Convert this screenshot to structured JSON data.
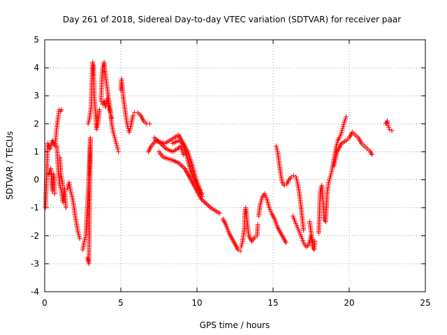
{
  "chart_data": {
    "type": "scatter",
    "title": "Day 261 of 2018, Sidereal Day-to-day VTEC variation (SDTVAR) for receiver paar",
    "xlabel": "GPS time / hours",
    "ylabel": "SDTVAR / TECUs",
    "xlim": [
      0,
      25
    ],
    "ylim": [
      -4,
      5
    ],
    "xticks": [
      "0",
      "5",
      "10",
      "15",
      "20",
      "25"
    ],
    "yticks": [
      "-4",
      "-3",
      "-2",
      "-1",
      "0",
      "1",
      "2",
      "3",
      "4",
      "5"
    ],
    "grid": true,
    "marker": "+",
    "color": "#ff0000",
    "segments": [
      [
        [
          0.05,
          -1.0
        ],
        [
          0.15,
          0.5
        ],
        [
          0.2,
          1.3
        ],
        [
          0.35,
          1.1
        ],
        [
          0.5,
          1.4
        ],
        [
          0.7,
          1.2
        ]
      ],
      [
        [
          0.25,
          0.2
        ],
        [
          0.4,
          0.4
        ],
        [
          0.5,
          -0.4
        ],
        [
          0.6,
          0.2
        ],
        [
          0.65,
          -0.5
        ]
      ],
      [
        [
          0.7,
          1.3
        ],
        [
          0.8,
          1.9
        ],
        [
          0.9,
          2.3
        ],
        [
          0.95,
          2.5
        ],
        [
          1.05,
          2.45
        ],
        [
          1.1,
          2.5
        ]
      ],
      [
        [
          0.8,
          1.2
        ],
        [
          0.9,
          0.3
        ],
        [
          1.0,
          -0.2
        ],
        [
          1.1,
          -0.4
        ],
        [
          1.2,
          -0.8
        ],
        [
          1.3,
          -0.3
        ],
        [
          1.4,
          -1.0
        ]
      ],
      [
        [
          1.0,
          0.8
        ],
        [
          1.05,
          0.3
        ],
        [
          1.1,
          0.1
        ],
        [
          1.2,
          -0.2
        ]
      ],
      [
        [
          1.5,
          -0.3
        ],
        [
          1.6,
          -0.1
        ],
        [
          1.7,
          -0.4
        ],
        [
          1.8,
          -0.6
        ],
        [
          1.9,
          -0.9
        ],
        [
          2.0,
          -1.3
        ],
        [
          2.1,
          -1.6
        ],
        [
          2.2,
          -1.9
        ],
        [
          2.3,
          -2.1
        ]
      ],
      [
        [
          2.5,
          -2.5
        ],
        [
          2.6,
          -2.2
        ],
        [
          2.7,
          -2.0
        ],
        [
          2.75,
          -1.5
        ],
        [
          2.8,
          -1.0
        ],
        [
          2.85,
          -0.5
        ],
        [
          2.9,
          0.2
        ],
        [
          2.95,
          0.7
        ],
        [
          3.0,
          1.5
        ],
        [
          2.9,
          -3.0
        ],
        [
          2.8,
          -2.8
        ]
      ],
      [
        [
          2.85,
          2.0
        ],
        [
          2.95,
          2.2
        ],
        [
          3.05,
          2.6
        ],
        [
          3.1,
          3.5
        ],
        [
          3.15,
          4.2
        ],
        [
          3.2,
          4.1
        ],
        [
          3.25,
          3.0
        ],
        [
          3.35,
          2.3
        ],
        [
          3.4,
          1.8
        ],
        [
          3.5,
          2.0
        ],
        [
          3.6,
          2.5
        ]
      ],
      [
        [
          3.7,
          2.8
        ],
        [
          3.75,
          3.5
        ],
        [
          3.8,
          4.0
        ],
        [
          3.9,
          4.2
        ],
        [
          4.0,
          3.7
        ],
        [
          4.1,
          3.3
        ],
        [
          4.2,
          2.9
        ],
        [
          4.3,
          2.5
        ],
        [
          4.4,
          2.0
        ],
        [
          4.5,
          1.7
        ],
        [
          4.6,
          1.5
        ],
        [
          4.7,
          1.3
        ],
        [
          4.8,
          1.1
        ],
        [
          4.85,
          1.0
        ]
      ],
      [
        [
          3.8,
          2.7
        ],
        [
          3.9,
          2.8
        ],
        [
          4.0,
          2.6
        ],
        [
          4.1,
          2.9
        ],
        [
          4.2,
          2.6
        ],
        [
          4.3,
          2.4
        ],
        [
          4.4,
          2.2
        ]
      ],
      [
        [
          5.0,
          3.2
        ],
        [
          5.05,
          3.6
        ],
        [
          5.15,
          3.0
        ],
        [
          5.25,
          2.6
        ],
        [
          5.35,
          2.2
        ],
        [
          5.45,
          1.9
        ],
        [
          5.55,
          1.7
        ],
        [
          5.65,
          1.9
        ],
        [
          5.8,
          2.3
        ]
      ],
      [
        [
          5.9,
          2.4
        ],
        [
          6.1,
          2.4
        ],
        [
          6.3,
          2.3
        ],
        [
          6.5,
          2.1
        ],
        [
          6.7,
          2.0
        ],
        [
          6.9,
          2.0
        ]
      ],
      [
        [
          6.8,
          1.0
        ],
        [
          7.0,
          1.2
        ],
        [
          7.3,
          1.4
        ],
        [
          7.6,
          1.35
        ],
        [
          7.9,
          1.3
        ],
        [
          8.2,
          1.4
        ],
        [
          8.5,
          1.5
        ],
        [
          8.8,
          1.6
        ],
        [
          9.0,
          1.4
        ],
        [
          9.2,
          1.1
        ],
        [
          9.4,
          0.7
        ],
        [
          9.6,
          0.3
        ],
        [
          9.8,
          0.0
        ],
        [
          10.0,
          -0.2
        ],
        [
          10.2,
          -0.4
        ],
        [
          10.35,
          -0.6
        ]
      ],
      [
        [
          7.2,
          1.5
        ],
        [
          7.6,
          1.3
        ],
        [
          8.0,
          1.1
        ],
        [
          8.4,
          1.0
        ],
        [
          8.7,
          1.1
        ],
        [
          8.95,
          1.2
        ],
        [
          9.1,
          0.9
        ]
      ],
      [
        [
          7.5,
          1.0
        ],
        [
          7.8,
          0.8
        ],
        [
          8.1,
          0.75
        ],
        [
          8.4,
          0.7
        ],
        [
          8.8,
          0.6
        ],
        [
          9.2,
          0.4
        ],
        [
          9.6,
          0.0
        ],
        [
          10.0,
          -0.4
        ],
        [
          10.3,
          -0.7
        ],
        [
          10.6,
          -0.85
        ],
        [
          10.9,
          -1.0
        ],
        [
          11.2,
          -1.1
        ],
        [
          11.5,
          -1.2
        ]
      ],
      [
        [
          8.4,
          1.3
        ],
        [
          8.8,
          1.4
        ],
        [
          9.1,
          1.3
        ],
        [
          9.4,
          1.0
        ],
        [
          9.7,
          0.5
        ],
        [
          9.9,
          0.1
        ],
        [
          10.1,
          -0.2
        ],
        [
          10.3,
          -0.5
        ]
      ],
      [
        [
          11.7,
          -1.4
        ],
        [
          11.9,
          -1.6
        ],
        [
          12.1,
          -1.9
        ],
        [
          12.3,
          -2.1
        ],
        [
          12.5,
          -2.3
        ],
        [
          12.7,
          -2.5
        ],
        [
          12.85,
          -2.55
        ]
      ],
      [
        [
          12.9,
          -2.4
        ],
        [
          13.0,
          -2.2
        ],
        [
          13.1,
          -1.8
        ],
        [
          13.15,
          -1.2
        ],
        [
          13.2,
          -1.0
        ],
        [
          13.3,
          -1.5
        ],
        [
          13.4,
          -2.0
        ],
        [
          13.6,
          -2.2
        ],
        [
          13.8,
          -2.05
        ],
        [
          13.95,
          -2.0
        ],
        [
          14.0,
          -1.6
        ]
      ],
      [
        [
          14.05,
          -1.3
        ],
        [
          14.15,
          -0.9
        ],
        [
          14.3,
          -0.6
        ],
        [
          14.45,
          -0.5
        ],
        [
          14.6,
          -0.7
        ],
        [
          14.75,
          -1.0
        ],
        [
          14.9,
          -1.2
        ],
        [
          15.1,
          -1.4
        ],
        [
          15.3,
          -1.7
        ],
        [
          15.5,
          -1.9
        ],
        [
          15.7,
          -2.1
        ],
        [
          15.85,
          -2.25
        ]
      ],
      [
        [
          15.2,
          1.2
        ],
        [
          15.3,
          1.0
        ],
        [
          15.4,
          0.6
        ],
        [
          15.5,
          0.2
        ],
        [
          15.6,
          -0.1
        ],
        [
          15.75,
          -0.2
        ],
        [
          15.9,
          -0.15
        ],
        [
          16.05,
          0.0
        ],
        [
          16.2,
          0.1
        ],
        [
          16.35,
          0.15
        ],
        [
          16.5,
          0.1
        ],
        [
          16.6,
          -0.1
        ],
        [
          16.7,
          -0.4
        ],
        [
          16.8,
          -0.8
        ],
        [
          16.9,
          -1.3
        ],
        [
          17.0,
          -1.8
        ]
      ],
      [
        [
          16.3,
          -1.3
        ],
        [
          16.45,
          -1.5
        ],
        [
          16.6,
          -1.7
        ],
        [
          16.75,
          -1.9
        ],
        [
          16.9,
          -2.1
        ],
        [
          17.05,
          -2.3
        ],
        [
          17.2,
          -2.4
        ],
        [
          17.35,
          -2.3
        ],
        [
          17.5,
          -2.0
        ],
        [
          17.6,
          -2.2
        ]
      ],
      [
        [
          17.4,
          -1.5
        ],
        [
          17.5,
          -1.9
        ],
        [
          17.6,
          -2.4
        ],
        [
          17.7,
          -2.5
        ],
        [
          17.75,
          -2.2
        ]
      ],
      [
        [
          18.0,
          -1.9
        ],
        [
          18.1,
          -0.4
        ],
        [
          18.2,
          -0.2
        ],
        [
          18.3,
          -0.9
        ],
        [
          18.35,
          -1.4
        ],
        [
          18.45,
          -1.5
        ],
        [
          18.55,
          -0.5
        ],
        [
          18.65,
          -0.1
        ],
        [
          18.75,
          0.1
        ],
        [
          18.85,
          0.3
        ],
        [
          18.95,
          0.6
        ],
        [
          19.05,
          0.9
        ],
        [
          19.15,
          1.2
        ],
        [
          19.25,
          1.4
        ],
        [
          19.35,
          1.5
        ],
        [
          19.5,
          1.7
        ],
        [
          19.6,
          1.9
        ],
        [
          19.7,
          2.1
        ],
        [
          19.8,
          2.25
        ]
      ],
      [
        [
          19.0,
          0.5
        ],
        [
          19.2,
          1.0
        ],
        [
          19.5,
          1.3
        ],
        [
          19.8,
          1.4
        ],
        [
          20.0,
          1.5
        ],
        [
          20.2,
          1.7
        ],
        [
          20.4,
          1.6
        ],
        [
          20.6,
          1.5
        ],
        [
          20.8,
          1.3
        ],
        [
          21.0,
          1.2
        ],
        [
          21.2,
          1.1
        ],
        [
          21.4,
          1.0
        ],
        [
          21.5,
          0.9
        ]
      ],
      [
        [
          22.4,
          2.0
        ],
        [
          22.5,
          2.1
        ],
        [
          22.55,
          1.95
        ],
        [
          22.65,
          1.8
        ],
        [
          22.8,
          1.75
        ]
      ]
    ]
  }
}
